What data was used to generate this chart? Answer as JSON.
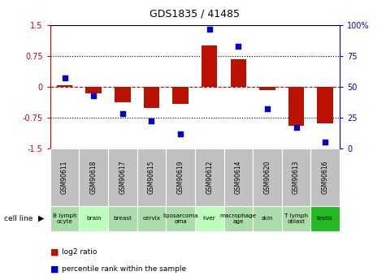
{
  "title": "GDS1835 / 41485",
  "samples": [
    "GSM90611",
    "GSM90618",
    "GSM90617",
    "GSM90615",
    "GSM90619",
    "GSM90612",
    "GSM90614",
    "GSM90620",
    "GSM90613",
    "GSM90616"
  ],
  "cell_lines": [
    "B lymph\nocyte",
    "brain",
    "breast",
    "cervix",
    "liposarcoma",
    "liver",
    "macrophage",
    "skin",
    "T lymph\noblast",
    "testis"
  ],
  "cell_lines_display": [
    "B lymph\nocyte",
    "brain",
    "breast",
    "cervix",
    "liposarcoma\noma",
    "liver",
    "macrophage\nage",
    "skin",
    "T lymph\noblast",
    "testis"
  ],
  "log2_ratio": [
    0.04,
    -0.15,
    -0.38,
    -0.52,
    -0.42,
    1.0,
    0.68,
    -0.08,
    -0.95,
    -0.9
  ],
  "percentile_rank": [
    57,
    43,
    28,
    22,
    12,
    97,
    83,
    32,
    17,
    5
  ],
  "ylim_left": [
    -1.5,
    1.5
  ],
  "ylim_right": [
    0,
    100
  ],
  "bar_color": "#bb1100",
  "dot_color": "#0000cc",
  "zero_line_color": "#cc0000",
  "bg_plot": "#ffffff",
  "gsm_bg": "#c0c0c0",
  "yticks_left": [
    -1.5,
    -0.75,
    0,
    0.75,
    1.5
  ],
  "ytick_labels_left": [
    "-1.5",
    "-0.75",
    "0",
    "0.75",
    "1.5"
  ],
  "yticks_right": [
    0,
    25,
    50,
    75,
    100
  ],
  "ytick_labels_right": [
    "0",
    "25",
    "50",
    "75",
    "100%"
  ],
  "cell_line_colors": [
    "#aaddaa",
    "#bbffbb",
    "#aaddaa",
    "#aaddaa",
    "#aaddaa",
    "#bbffbb",
    "#aaddaa",
    "#aaddaa",
    "#aaddaa",
    "#22bb22"
  ]
}
